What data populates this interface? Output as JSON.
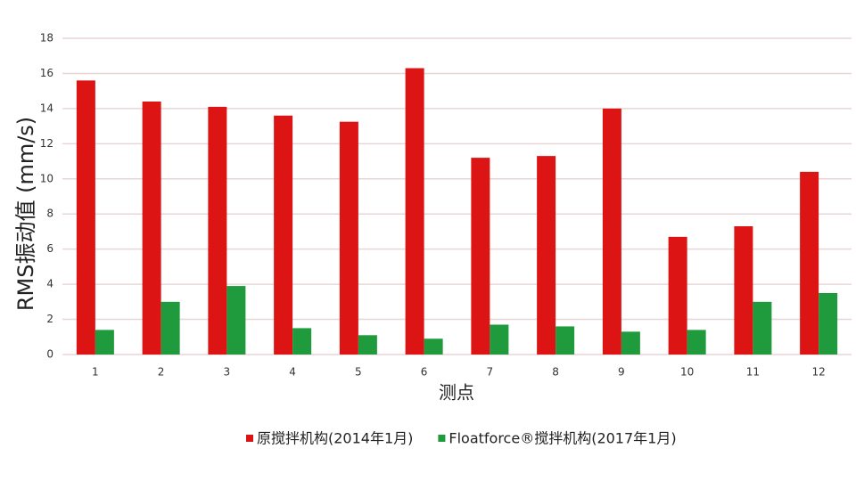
{
  "chart_data": {
    "type": "bar",
    "y_label": "RMS振动值 (mm/s)",
    "x_label": "测点",
    "categories": [
      "1",
      "2",
      "3",
      "4",
      "5",
      "6",
      "7",
      "8",
      "9",
      "10",
      "11",
      "12"
    ],
    "series": [
      {
        "name": "原搅拌机构(2014年1月)",
        "color": "#dc1414",
        "values": [
          15.6,
          14.4,
          14.1,
          13.6,
          13.25,
          16.3,
          11.2,
          11.3,
          14.0,
          6.7,
          7.3,
          10.4
        ]
      },
      {
        "name": "Floatforce®搅拌机构(2017年1月)",
        "color": "#1f9a3c",
        "values": [
          1.4,
          3.0,
          3.9,
          1.5,
          1.1,
          0.9,
          1.7,
          1.6,
          1.3,
          1.4,
          3.0,
          3.5
        ]
      }
    ],
    "ylim": [
      0,
      18
    ],
    "yticks": [
      0,
      2,
      4,
      6,
      8,
      10,
      12,
      14,
      16,
      18
    ],
    "grid": true,
    "legend": "bottom"
  }
}
